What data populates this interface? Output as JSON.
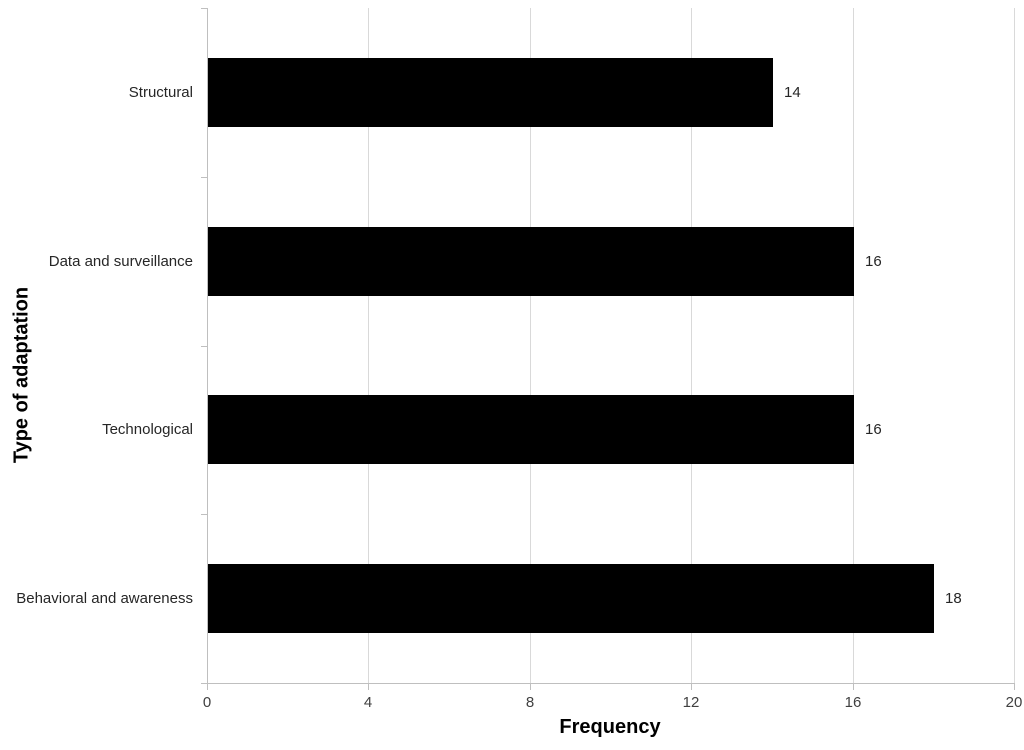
{
  "chart_data": {
    "type": "bar",
    "orientation": "horizontal",
    "title": "",
    "categories": [
      "Structural",
      "Data and surveillance",
      "Technological",
      "Behavioral and awareness"
    ],
    "values": [
      14,
      16,
      16,
      18
    ],
    "data_labels": [
      "14",
      "16",
      "16",
      "18"
    ],
    "xlabel": "Frequency",
    "ylabel": "Type of adaptation",
    "xlim": [
      0,
      20
    ],
    "xticks": [
      "0",
      "4",
      "8",
      "12",
      "16",
      "20"
    ],
    "grid": "vertical",
    "legend": "none",
    "colors": {
      "bar": "#000000",
      "gridline": "#d9d9d9",
      "axis": "#bfbfbf",
      "label_text": "#262626",
      "tick_text": "#404040",
      "axis_title_text": "#000000",
      "background": "#ffffff"
    }
  }
}
